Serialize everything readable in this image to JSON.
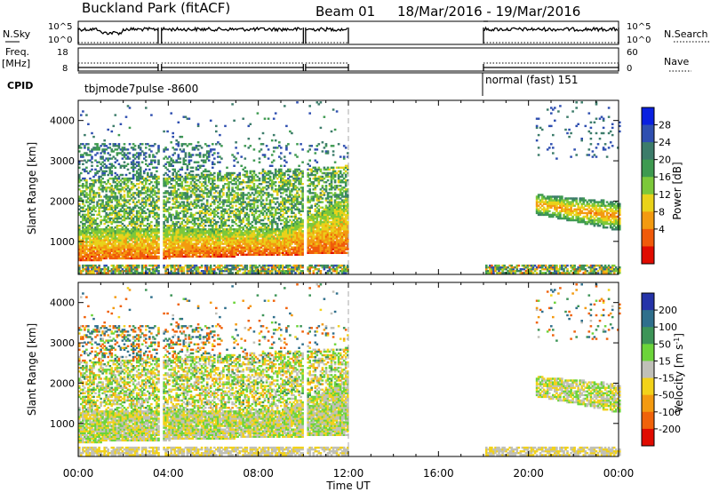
{
  "header": {
    "title": "Buckland Park (fitACF)",
    "beam": "Beam 01",
    "date_range": "18/Mar/2016 - 19/Mar/2016"
  },
  "panels": {
    "nsky": {
      "label": "N.Sky",
      "ticks_left": [
        "10^5",
        "10^0"
      ],
      "ticks_right": [
        "10^5",
        "10^0"
      ],
      "right_label": "N.Search"
    },
    "freq": {
      "label_line1": "Freq.",
      "label_line2": "[MHz]",
      "ticks_left": [
        "18",
        "8"
      ],
      "ticks_right": [
        "60",
        "0"
      ],
      "right_label": "Nave"
    },
    "cpid": {
      "label": "CPID",
      "modes": [
        {
          "name": "tbjmode7pulse -8600",
          "start_h": 0,
          "end_h": 12
        },
        {
          "name": "normal (fast) 151",
          "start_h": 18,
          "end_h": 24
        }
      ]
    }
  },
  "chart_data": [
    {
      "type": "heatmap",
      "name": "power",
      "ylabel": "Slant Range [km]",
      "ylim": [
        180,
        4500
      ],
      "yticks": [
        1000,
        2000,
        3000,
        4000
      ],
      "colorbar_label": "Power [dB]",
      "colorbar_ticks": [
        4,
        8,
        12,
        16,
        20,
        24,
        28
      ],
      "colorbar_range": [
        0,
        32
      ],
      "colors": [
        "#0a20e0",
        "#2f4fb0",
        "#3c7c6a",
        "#3e9a50",
        "#7cc83a",
        "#e9d21a",
        "#f39a10",
        "#f05a0a",
        "#e00b00"
      ]
    },
    {
      "type": "heatmap",
      "name": "velocity",
      "ylabel": "Slant Range [km]",
      "ylim": [
        180,
        4500
      ],
      "yticks": [
        1000,
        2000,
        3000,
        4000
      ],
      "colorbar_label": "Velocity [m s^-1]",
      "colorbar_ticks": [
        200,
        100,
        50,
        15,
        -15,
        -50,
        -100,
        -200
      ],
      "colors": [
        "#2533a8",
        "#2f6f8c",
        "#3d9457",
        "#6cd43a",
        "#c0c0b8",
        "#f2d21a",
        "#f39a10",
        "#f0620a",
        "#e00b00"
      ]
    }
  ],
  "time_axis": {
    "label": "Time UT",
    "xlim": [
      0,
      24
    ],
    "ticks": [
      "00:00",
      "04:00",
      "08:00",
      "12:00",
      "16:00",
      "20:00",
      "00:00"
    ]
  }
}
